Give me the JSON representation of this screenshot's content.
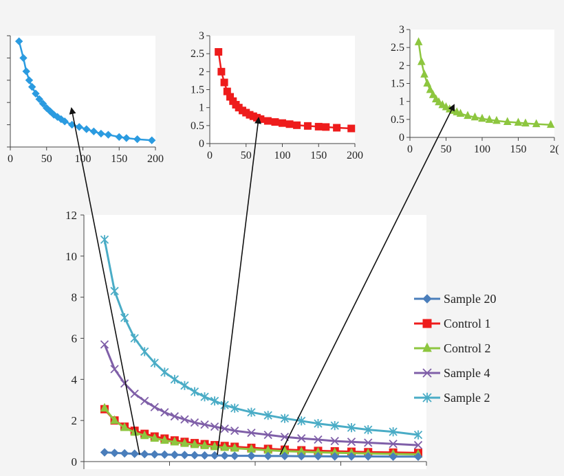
{
  "chart_data": [
    {
      "id": "main",
      "type": "line",
      "title": "",
      "xlabel": "",
      "ylabel": "",
      "xlim": [
        0,
        200
      ],
      "ylim": [
        0,
        12
      ],
      "yticks": [
        "0",
        "2",
        "4",
        "6",
        "8",
        "10",
        "12"
      ],
      "x_tick_labels_visible": false,
      "legend_position": "right",
      "series": [
        {
          "name": "Sample 20",
          "color": "#4a7ebb",
          "marker": "diamond",
          "x": [
            12,
            18,
            24,
            30,
            36,
            42,
            48,
            54,
            60,
            66,
            72,
            78,
            84,
            90,
            100,
            110,
            120,
            130,
            140,
            150,
            160,
            170,
            185,
            200
          ],
          "y": [
            0.45,
            0.42,
            0.4,
            0.38,
            0.36,
            0.35,
            0.34,
            0.33,
            0.32,
            0.31,
            0.3,
            0.3,
            0.29,
            0.28,
            0.28,
            0.27,
            0.27,
            0.26,
            0.26,
            0.25,
            0.25,
            0.25,
            0.24,
            0.24
          ]
        },
        {
          "name": "Control 1",
          "color": "#ee1c1c",
          "marker": "square",
          "x": [
            12,
            18,
            24,
            30,
            36,
            42,
            48,
            54,
            60,
            66,
            72,
            78,
            84,
            90,
            100,
            110,
            120,
            130,
            140,
            150,
            160,
            170,
            185,
            200
          ],
          "y": [
            2.55,
            2.0,
            1.7,
            1.5,
            1.35,
            1.22,
            1.12,
            1.03,
            0.96,
            0.9,
            0.85,
            0.8,
            0.76,
            0.72,
            0.67,
            0.62,
            0.58,
            0.55,
            0.52,
            0.5,
            0.48,
            0.46,
            0.44,
            0.42
          ]
        },
        {
          "name": "Control 2",
          "color": "#8dc63f",
          "marker": "triangle",
          "x": [
            12,
            18,
            24,
            30,
            36,
            42,
            48,
            54,
            60,
            66,
            72,
            78,
            84,
            90,
            100,
            110,
            120,
            130,
            140,
            150,
            160,
            170,
            185,
            200
          ],
          "y": [
            2.6,
            2.0,
            1.65,
            1.42,
            1.26,
            1.13,
            1.03,
            0.95,
            0.88,
            0.82,
            0.77,
            0.72,
            0.68,
            0.65,
            0.6,
            0.55,
            0.51,
            0.48,
            0.45,
            0.43,
            0.41,
            0.39,
            0.37,
            0.35
          ]
        },
        {
          "name": "Sample 4",
          "color": "#7f5fa8",
          "marker": "x",
          "x": [
            12,
            18,
            24,
            30,
            36,
            42,
            48,
            54,
            60,
            66,
            72,
            78,
            84,
            90,
            100,
            110,
            120,
            130,
            140,
            150,
            160,
            170,
            185,
            200
          ],
          "y": [
            5.7,
            4.5,
            3.8,
            3.3,
            2.95,
            2.65,
            2.4,
            2.2,
            2.05,
            1.9,
            1.8,
            1.7,
            1.6,
            1.5,
            1.4,
            1.3,
            1.2,
            1.13,
            1.07,
            1.0,
            0.96,
            0.92,
            0.86,
            0.8
          ]
        },
        {
          "name": "Sample 2",
          "color": "#4aacc6",
          "marker": "star",
          "x": [
            12,
            18,
            24,
            30,
            36,
            42,
            48,
            54,
            60,
            66,
            72,
            78,
            84,
            90,
            100,
            110,
            120,
            130,
            140,
            150,
            160,
            170,
            185,
            200
          ],
          "y": [
            10.8,
            8.3,
            7.0,
            6.0,
            5.35,
            4.8,
            4.35,
            4.0,
            3.7,
            3.4,
            3.15,
            2.95,
            2.75,
            2.6,
            2.4,
            2.25,
            2.1,
            1.98,
            1.85,
            1.75,
            1.65,
            1.55,
            1.45,
            1.3
          ]
        }
      ]
    },
    {
      "id": "inset-left",
      "type": "line",
      "series_ref": "Sample 20",
      "xlim": [
        0,
        200
      ],
      "xticks": [
        "0",
        "50",
        "100",
        "150",
        "200"
      ],
      "yticks_labels_visible": false,
      "color": "#2b9be0",
      "marker": "diamond",
      "x": [
        12,
        18,
        22,
        26,
        30,
        35,
        40,
        45,
        50,
        55,
        60,
        65,
        70,
        75,
        85,
        95,
        105,
        115,
        125,
        135,
        150,
        160,
        175,
        195
      ],
      "y": [
        0.95,
        0.8,
        0.68,
        0.6,
        0.54,
        0.48,
        0.43,
        0.39,
        0.35,
        0.32,
        0.29,
        0.27,
        0.25,
        0.23,
        0.2,
        0.18,
        0.16,
        0.14,
        0.12,
        0.11,
        0.09,
        0.08,
        0.07,
        0.06
      ],
      "ylim": [
        0,
        1
      ]
    },
    {
      "id": "inset-middle",
      "type": "line",
      "series_ref": "Control 1",
      "xlim": [
        0,
        200
      ],
      "ylim": [
        0,
        3
      ],
      "xticks": [
        "0",
        "50",
        "100",
        "150",
        "200"
      ],
      "yticks": [
        "0",
        "0.5",
        "1",
        "1.5",
        "2",
        "2.5",
        "3"
      ],
      "color": "#ee1c1c",
      "marker": "square",
      "x": [
        12,
        16,
        20,
        24,
        28,
        32,
        36,
        40,
        45,
        50,
        55,
        60,
        65,
        70,
        80,
        90,
        100,
        110,
        120,
        135,
        150,
        160,
        175,
        195
      ],
      "y": [
        2.55,
        2.0,
        1.7,
        1.45,
        1.3,
        1.18,
        1.08,
        1.0,
        0.92,
        0.86,
        0.8,
        0.76,
        0.72,
        0.68,
        0.63,
        0.6,
        0.57,
        0.54,
        0.51,
        0.49,
        0.47,
        0.46,
        0.44,
        0.42
      ]
    },
    {
      "id": "inset-right",
      "type": "line",
      "series_ref": "Control 2",
      "xlim": [
        0,
        200
      ],
      "ylim": [
        0,
        3
      ],
      "xticks": [
        "0",
        "50",
        "100",
        "150",
        "2("
      ],
      "yticks": [
        "0",
        "0.5",
        "1",
        "1.5",
        "2",
        "2.5",
        "3"
      ],
      "color": "#8dc63f",
      "marker": "triangle",
      "x": [
        12,
        16,
        20,
        24,
        28,
        32,
        36,
        40,
        45,
        50,
        55,
        60,
        65,
        70,
        80,
        90,
        100,
        110,
        120,
        135,
        150,
        160,
        175,
        195
      ],
      "y": [
        2.65,
        2.1,
        1.75,
        1.5,
        1.32,
        1.18,
        1.06,
        0.98,
        0.9,
        0.84,
        0.78,
        0.74,
        0.7,
        0.66,
        0.6,
        0.56,
        0.52,
        0.49,
        0.46,
        0.43,
        0.41,
        0.39,
        0.37,
        0.35
      ]
    }
  ],
  "arrows": [
    {
      "from_series": "Sample 20",
      "to_inset": "inset-left"
    },
    {
      "from_series": "Control 1",
      "to_inset": "inset-middle"
    },
    {
      "from_series": "Control 2",
      "to_inset": "inset-right"
    }
  ]
}
